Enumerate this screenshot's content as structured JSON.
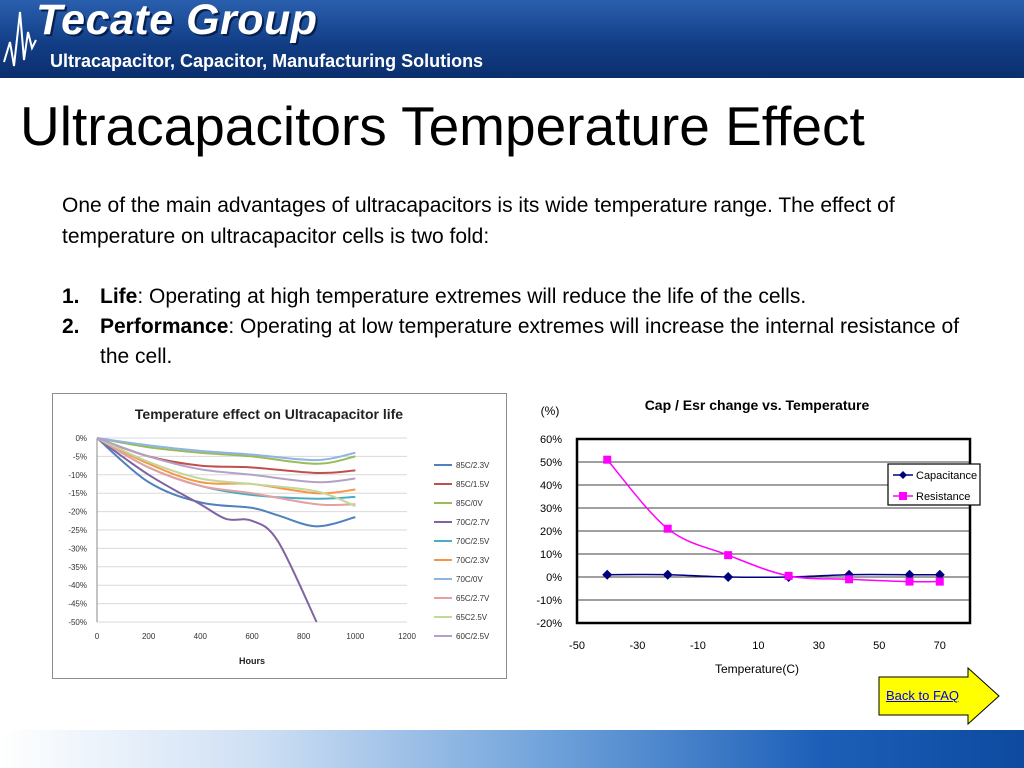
{
  "header": {
    "company": "Tecate Group",
    "tagline": "Ultracapacitor, Capacitor, Manufacturing Solutions"
  },
  "title": "Ultracapacitors Temperature Effect",
  "intro": "One of the main advantages of ultracapacitors is its wide temperature range. The effect of temperature on ultracapacitor cells is two fold:",
  "points": [
    {
      "num": "1.",
      "term": "Life",
      "text": ": Operating at high temperature extremes will reduce the life of the cells."
    },
    {
      "num": "2.",
      "term": "Performance",
      "text": ": Operating at low temperature extremes will increase the internal resistance of the cell."
    }
  ],
  "back_link": "Back to FAQ",
  "colors": {
    "banner": "#123e86",
    "resistance": "#ff00ff",
    "capacitance": "#00007f",
    "faq_button": "#ffff00"
  },
  "chart_data": [
    {
      "type": "line",
      "title": "Temperature effect on Ultracapacitor life",
      "xlabel": "Hours",
      "ylabel": "",
      "xlim": [
        0,
        1200
      ],
      "ylim": [
        -50,
        0
      ],
      "xticks": [
        0,
        200,
        400,
        600,
        800,
        1000,
        1200
      ],
      "yticks": [
        0,
        -5,
        -10,
        -15,
        -20,
        -25,
        -30,
        -35,
        -40,
        -45,
        -50
      ],
      "ytick_labels": [
        "0%",
        "-5%",
        "-10%",
        "-15%",
        "-20%",
        "-25%",
        "-30%",
        "-35%",
        "-40%",
        "-45%",
        "-50%"
      ],
      "grid": true,
      "legend": "right",
      "series": [
        {
          "name": "85C/2.3V",
          "color": "#4f81bd",
          "x": [
            0,
            200,
            400,
            600,
            700,
            850,
            1000
          ],
          "y": [
            0,
            -12,
            -17.5,
            -19,
            -21,
            -24,
            -21.5
          ]
        },
        {
          "name": "85C/1.5V",
          "color": "#c0504d",
          "x": [
            0,
            200,
            400,
            600,
            850,
            1000
          ],
          "y": [
            0,
            -5,
            -7.5,
            -8,
            -9.5,
            -8.8
          ]
        },
        {
          "name": "85C/0V",
          "color": "#9bbb59",
          "x": [
            0,
            200,
            400,
            600,
            850,
            1000
          ],
          "y": [
            0,
            -2.5,
            -4,
            -5,
            -7,
            -5
          ]
        },
        {
          "name": "70C/2.7V",
          "color": "#8064a2",
          "x": [
            0,
            200,
            400,
            500,
            600,
            700,
            850
          ],
          "y": [
            0,
            -10,
            -18,
            -22,
            -22.5,
            -28,
            -50
          ]
        },
        {
          "name": "70C/2.5V",
          "color": "#4bacc6",
          "x": [
            0,
            200,
            400,
            600,
            850,
            1000
          ],
          "y": [
            0,
            -8,
            -13,
            -15.5,
            -16.5,
            -16
          ]
        },
        {
          "name": "70C/2.3V",
          "color": "#f79646",
          "x": [
            0,
            200,
            400,
            600,
            850,
            1000
          ],
          "y": [
            0,
            -7,
            -12,
            -12.5,
            -15,
            -14
          ]
        },
        {
          "name": "70C/0V",
          "color": "#8eb4e3",
          "x": [
            0,
            200,
            400,
            600,
            850,
            1000
          ],
          "y": [
            0,
            -2,
            -3.5,
            -4.5,
            -6,
            -4
          ]
        },
        {
          "name": "65C/2.7V",
          "color": "#e6a0a0",
          "x": [
            0,
            200,
            400,
            600,
            850,
            1000
          ],
          "y": [
            0,
            -8,
            -13,
            -15,
            -18,
            -18
          ]
        },
        {
          "name": "65C2.5V",
          "color": "#c3d69b",
          "x": [
            0,
            200,
            400,
            600,
            850,
            1000
          ],
          "y": [
            0,
            -6.5,
            -11,
            -12.5,
            -14.5,
            -18.5
          ]
        },
        {
          "name": "60C/2.5V",
          "color": "#b3a2c7",
          "x": [
            0,
            200,
            400,
            600,
            850,
            1000
          ],
          "y": [
            0,
            -5,
            -8.5,
            -10,
            -12,
            -11
          ]
        }
      ]
    },
    {
      "type": "line",
      "title": "Cap / Esr change vs. Temperature",
      "xlabel": "Temperature(C)",
      "ylabel": "(%)",
      "xlim": [
        -50,
        80
      ],
      "ylim": [
        -20,
        60
      ],
      "xticks": [
        -50,
        -30,
        -10,
        10,
        30,
        50,
        70
      ],
      "yticks": [
        60,
        50,
        40,
        30,
        20,
        10,
        0,
        -10,
        -20
      ],
      "ytick_labels": [
        "60%",
        "50%",
        "40%",
        "30%",
        "20%",
        "10%",
        "0%",
        "-10%",
        "-20%"
      ],
      "grid": true,
      "legend": "top-right",
      "series": [
        {
          "name": "Capacitance",
          "color": "#00007f",
          "marker": "diamond",
          "x": [
            -40,
            -20,
            0,
            20,
            40,
            60,
            70
          ],
          "y": [
            1,
            1,
            0,
            0,
            1,
            1,
            1
          ]
        },
        {
          "name": "Resistance",
          "color": "#ff00ff",
          "marker": "square",
          "x": [
            -40,
            -20,
            0,
            20,
            40,
            60,
            70
          ],
          "y": [
            51,
            21,
            9.5,
            0.5,
            -1,
            -2,
            -2
          ]
        }
      ]
    }
  ]
}
